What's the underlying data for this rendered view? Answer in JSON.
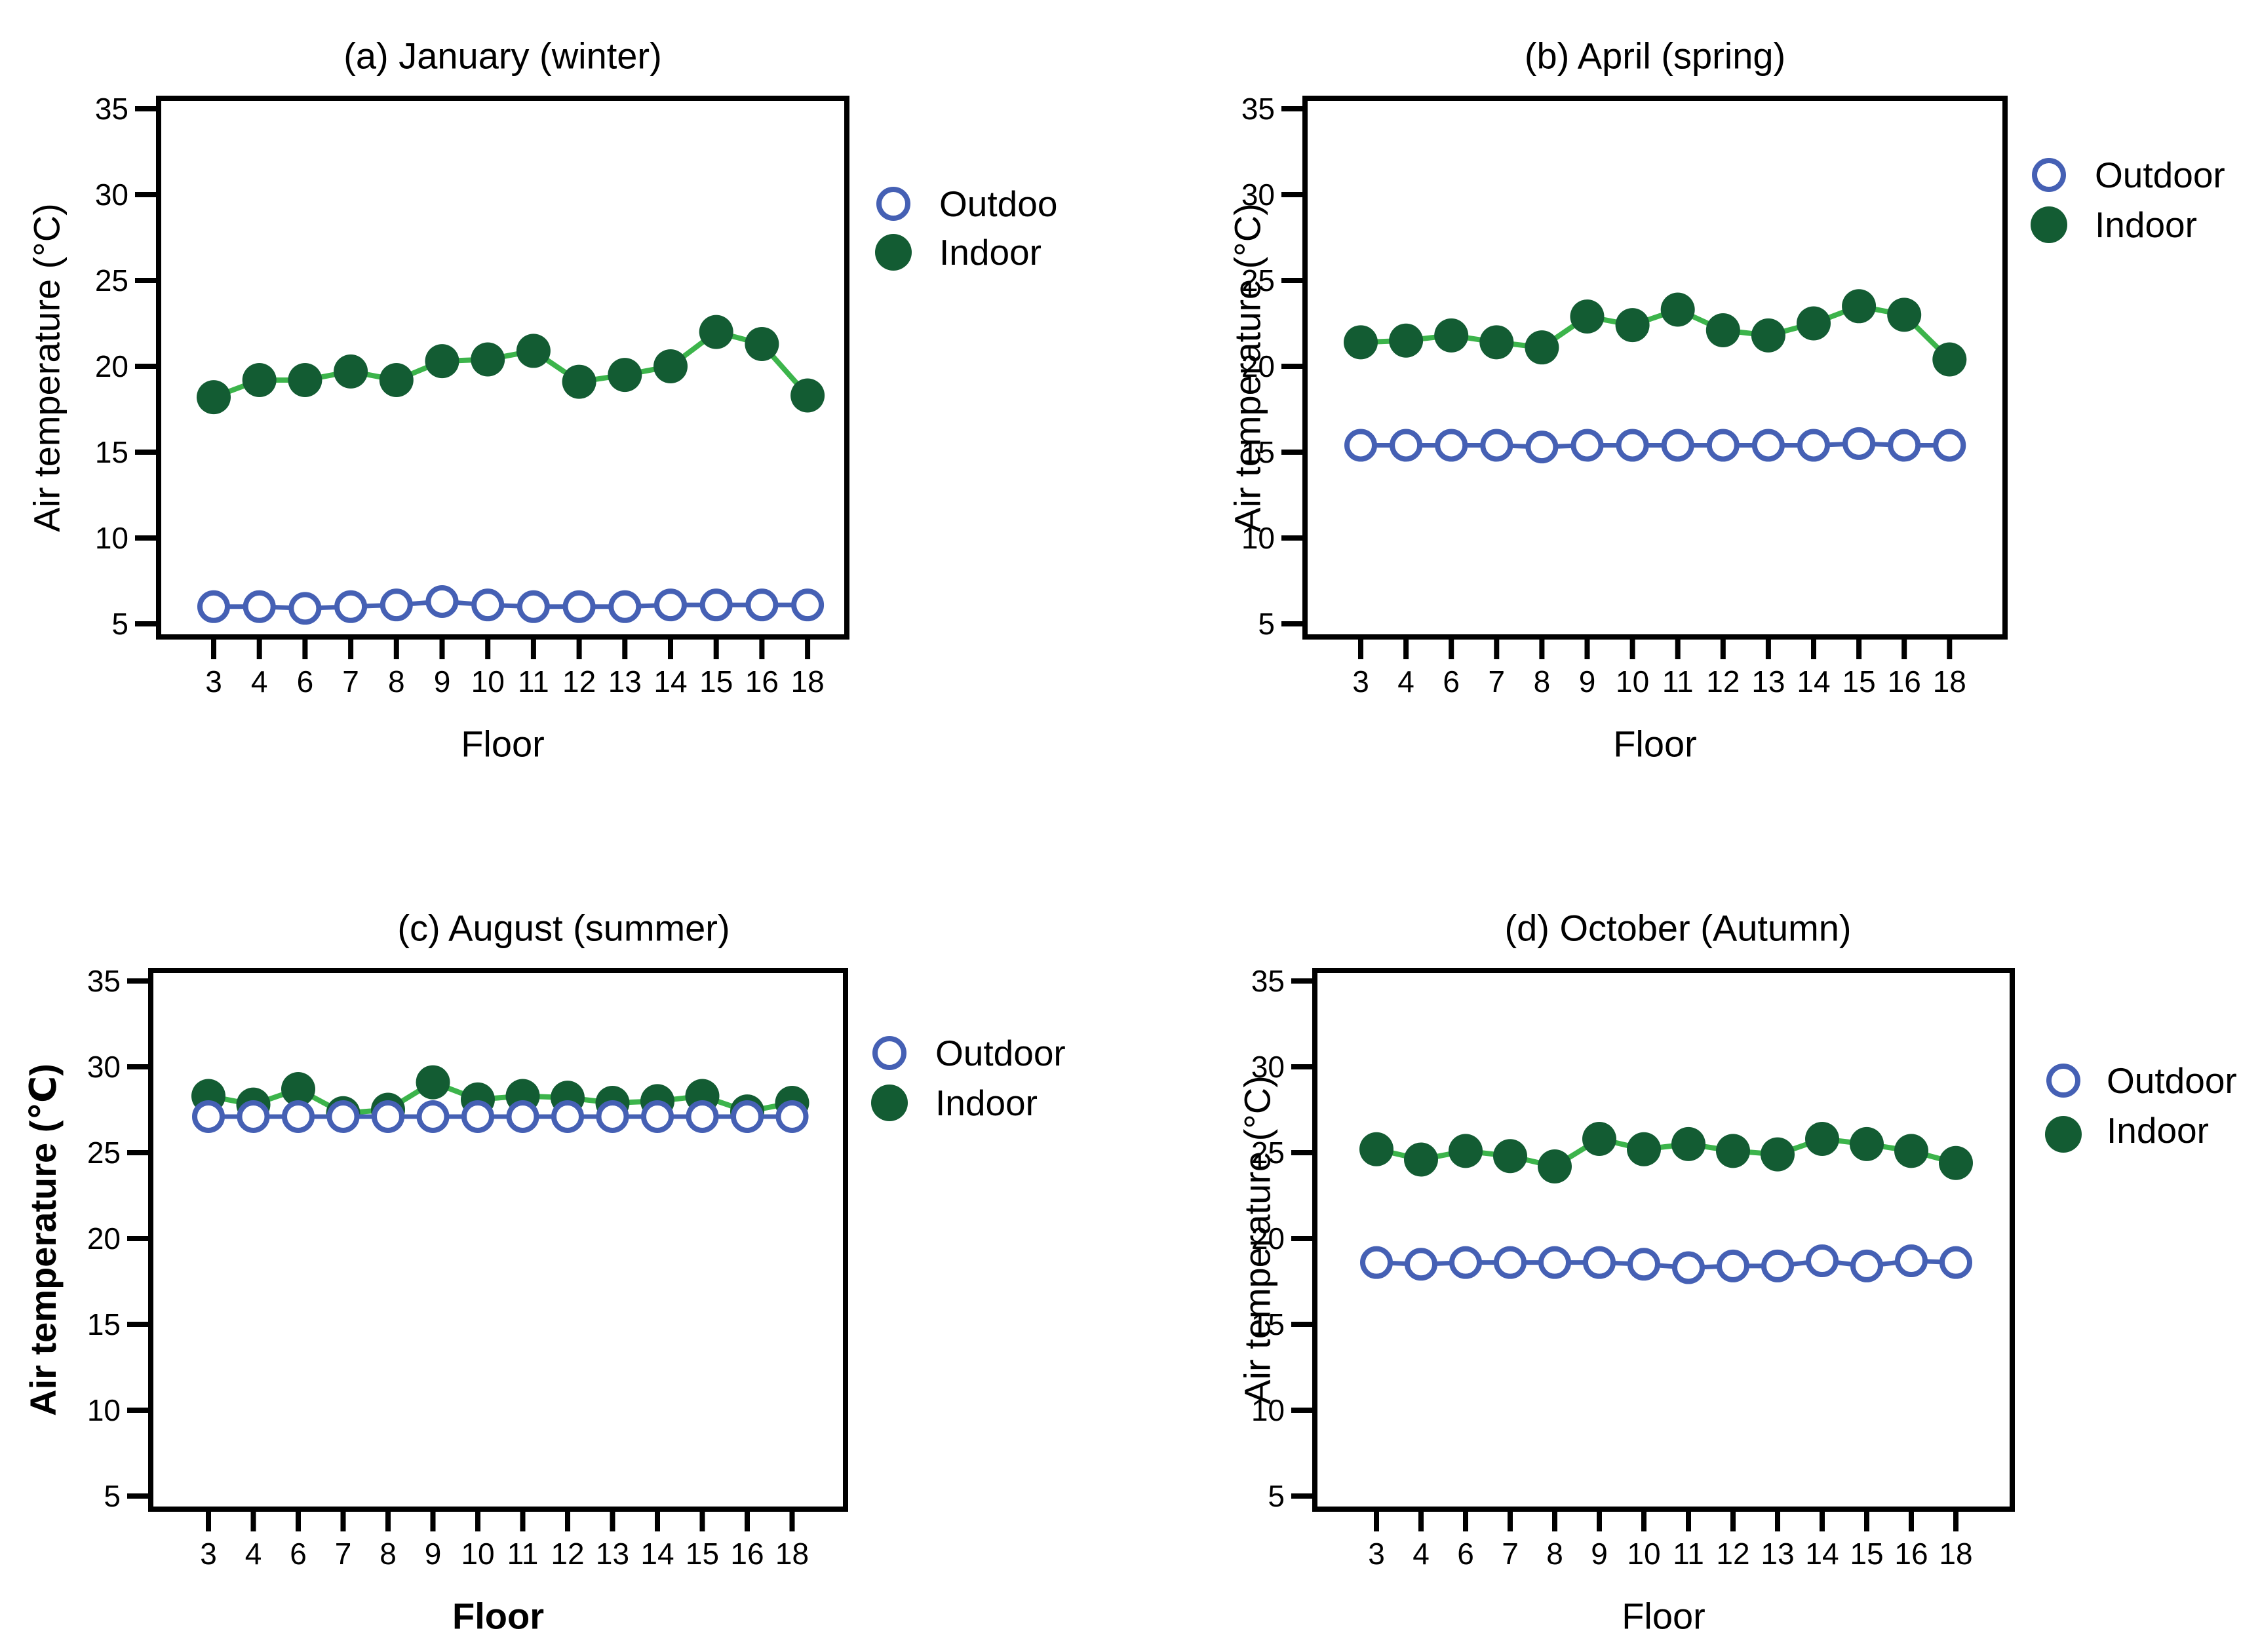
{
  "figure": {
    "background": "#ffffff",
    "text_color": "#000000",
    "outdoor_color": "#4560B4",
    "indoor_fill_color": "#135C33",
    "indoor_line_color": "#3CB44B",
    "frame_color": "#000000"
  },
  "chart_data": [
    {
      "type": "line",
      "panel": "a",
      "title": "(a) January (winter)",
      "xlabel": "Floor",
      "ylabel": "Air temperature (°C)",
      "categories": [
        "3",
        "4",
        "6",
        "7",
        "8",
        "9",
        "10",
        "11",
        "12",
        "13",
        "14",
        "15",
        "16",
        "18"
      ],
      "yticks": [
        35,
        30,
        25,
        20,
        15,
        10,
        5
      ],
      "ylim": [
        4,
        36
      ],
      "grid": false,
      "legend_position": "right",
      "series": [
        {
          "name": "Outdoor",
          "legend_label": "Outdoo",
          "marker": "open-circle",
          "color": "#4560B4",
          "values": [
            6.0,
            6.0,
            5.9,
            6.0,
            6.1,
            6.3,
            6.1,
            6.0,
            6.0,
            6.0,
            6.1,
            6.1,
            6.1,
            6.1
          ]
        },
        {
          "name": "Indoor",
          "legend_label": "Indoor",
          "marker": "filled-circle",
          "color": "#135C33",
          "line_color": "#3CB44B",
          "values": [
            18.2,
            19.2,
            19.2,
            19.7,
            19.2,
            20.3,
            20.4,
            20.9,
            19.1,
            19.5,
            20.0,
            22.0,
            21.3,
            18.3
          ]
        }
      ]
    },
    {
      "type": "line",
      "panel": "b",
      "title": "(b) April (spring)",
      "xlabel": "Floor",
      "ylabel": "Air temperature (°C)",
      "categories": [
        "3",
        "4",
        "6",
        "7",
        "8",
        "9",
        "10",
        "11",
        "12",
        "13",
        "14",
        "15",
        "16",
        "18"
      ],
      "yticks": [
        35,
        30,
        25,
        20,
        15,
        10,
        5
      ],
      "ylim": [
        4,
        36
      ],
      "grid": false,
      "legend_position": "right",
      "series": [
        {
          "name": "Outdoor",
          "legend_label": "Outdoor",
          "marker": "open-circle",
          "color": "#4560B4",
          "values": [
            15.4,
            15.4,
            15.4,
            15.4,
            15.3,
            15.4,
            15.4,
            15.4,
            15.4,
            15.4,
            15.4,
            15.5,
            15.4,
            15.4
          ]
        },
        {
          "name": "Indoor",
          "legend_label": "Indoor",
          "marker": "filled-circle",
          "color": "#135C33",
          "line_color": "#3CB44B",
          "values": [
            21.4,
            21.5,
            21.8,
            21.4,
            21.1,
            22.9,
            22.4,
            23.3,
            22.1,
            21.8,
            22.5,
            23.5,
            23.0,
            20.4
          ]
        }
      ]
    },
    {
      "type": "line",
      "panel": "c",
      "title": "(c) August (summer)",
      "xlabel": "Floor",
      "ylabel": "Air temperature (℃)",
      "categories": [
        "3",
        "4",
        "6",
        "7",
        "8",
        "9",
        "10",
        "11",
        "12",
        "13",
        "14",
        "15",
        "16",
        "18"
      ],
      "yticks": [
        35,
        30,
        25,
        20,
        15,
        10,
        5
      ],
      "ylim": [
        4,
        36
      ],
      "grid": false,
      "legend_position": "right",
      "series": [
        {
          "name": "Outdoor",
          "legend_label": "Outdoor",
          "marker": "open-circle",
          "color": "#4560B4",
          "values": [
            27.1,
            27.1,
            27.1,
            27.1,
            27.1,
            27.1,
            27.1,
            27.1,
            27.1,
            27.1,
            27.1,
            27.1,
            27.1,
            27.1
          ]
        },
        {
          "name": "Indoor",
          "legend_label": "Indoor",
          "marker": "filled-circle",
          "color": "#135C33",
          "line_color": "#3CB44B",
          "values": [
            28.3,
            27.8,
            28.7,
            27.3,
            27.5,
            29.1,
            28.1,
            28.3,
            28.2,
            27.9,
            28.0,
            28.3,
            27.4,
            27.9
          ]
        }
      ]
    },
    {
      "type": "line",
      "panel": "d",
      "title": "(d) October (Autumn)",
      "xlabel": "Floor",
      "ylabel": "Air temperature (°C)",
      "categories": [
        "3",
        "4",
        "6",
        "7",
        "8",
        "9",
        "10",
        "11",
        "12",
        "13",
        "14",
        "15",
        "16",
        "18"
      ],
      "yticks": [
        35,
        30,
        25,
        20,
        15,
        10,
        5
      ],
      "ylim": [
        4,
        36
      ],
      "grid": false,
      "legend_position": "right",
      "series": [
        {
          "name": "Outdoor",
          "legend_label": "Outdoor",
          "marker": "open-circle",
          "color": "#4560B4",
          "values": [
            18.6,
            18.5,
            18.6,
            18.6,
            18.6,
            18.6,
            18.5,
            18.3,
            18.4,
            18.4,
            18.7,
            18.4,
            18.7,
            18.6
          ]
        },
        {
          "name": "Indoor",
          "legend_label": "Indoor",
          "marker": "filled-circle",
          "color": "#135C33",
          "line_color": "#3CB44B",
          "values": [
            25.2,
            24.6,
            25.1,
            24.8,
            24.2,
            25.8,
            25.2,
            25.5,
            25.1,
            24.9,
            25.8,
            25.5,
            25.1,
            24.4
          ]
        }
      ]
    }
  ]
}
